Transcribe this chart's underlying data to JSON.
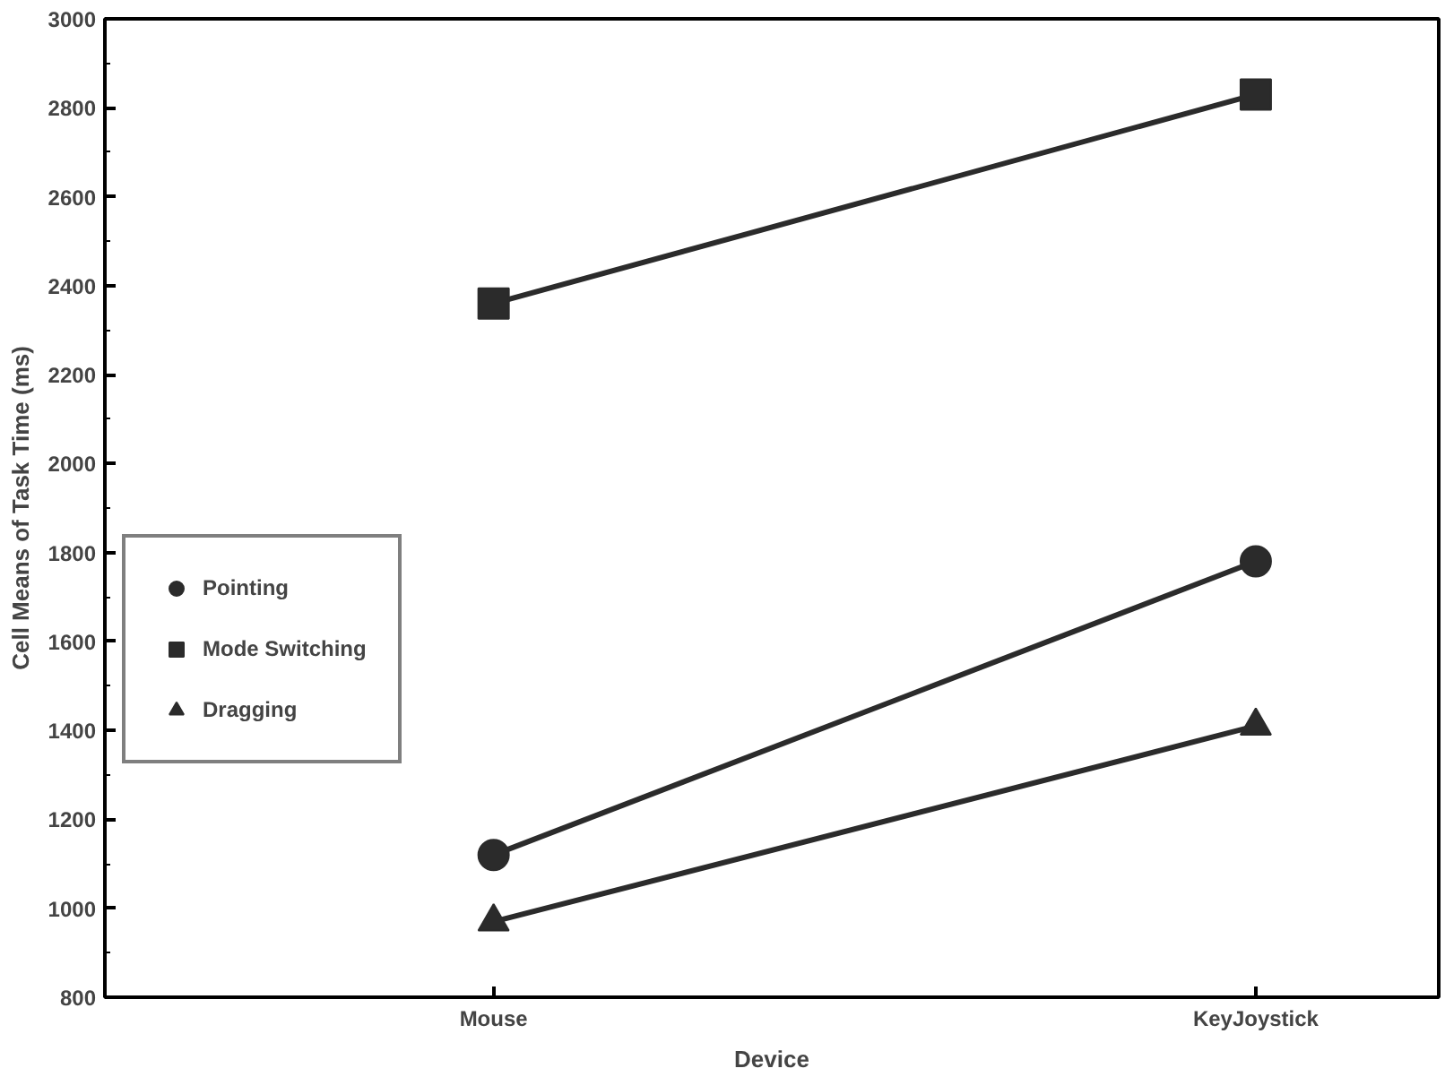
{
  "chart_data": {
    "type": "line",
    "xlabel": "Device",
    "ylabel": "Cell Means of Task Time (ms)",
    "categories": [
      "Mouse",
      "KeyJoystick"
    ],
    "series": [
      {
        "name": "Pointing",
        "color": "#2b2b2b",
        "marker": "circle",
        "values": [
          1120,
          1780
        ]
      },
      {
        "name": "Mode Switching",
        "color": "#2b2b2b",
        "marker": "square",
        "values": [
          2360,
          2830
        ]
      },
      {
        "name": "Dragging",
        "color": "#2b2b2b",
        "marker": "triangle",
        "values": [
          970,
          1410
        ]
      }
    ],
    "ylim": [
      800,
      3000
    ],
    "yticks": [
      800,
      1000,
      1200,
      1400,
      1600,
      1800,
      2000,
      2200,
      2400,
      2600,
      2800,
      3000
    ],
    "grid": false,
    "legend": "left",
    "line_style": "solid"
  }
}
